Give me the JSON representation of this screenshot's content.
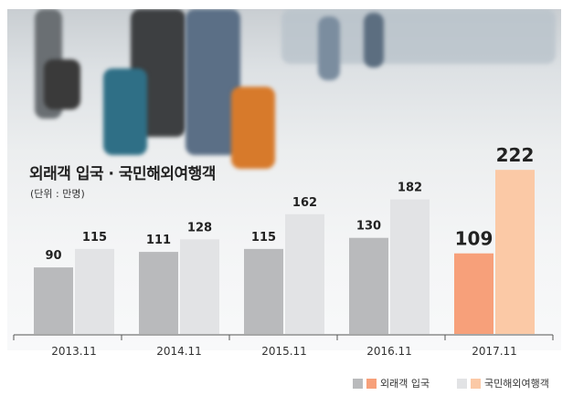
{
  "chart_data": {
    "type": "bar",
    "title": "외래객 입국 · 국민해외여행객",
    "subtitle": "(단위 : 만명)",
    "categories": [
      "2013.11",
      "2014.11",
      "2015.11",
      "2016.11",
      "2017.11"
    ],
    "series": [
      {
        "name": "외래객 입국",
        "values": [
          90,
          111,
          115,
          130,
          109
        ]
      },
      {
        "name": "국민해외여행객",
        "values": [
          115,
          128,
          162,
          182,
          222
        ]
      }
    ],
    "highlight_category": "2017.11",
    "ylim": [
      0,
      230
    ],
    "grid": false,
    "legend": "bottom-right",
    "colors": {
      "inbound": "#b9babc",
      "outbound": "#e2e3e5",
      "inbound_highlight": "#f7a07a",
      "outbound_highlight": "#fbc9a6",
      "axis": "#555555",
      "label": "#222222"
    }
  }
}
